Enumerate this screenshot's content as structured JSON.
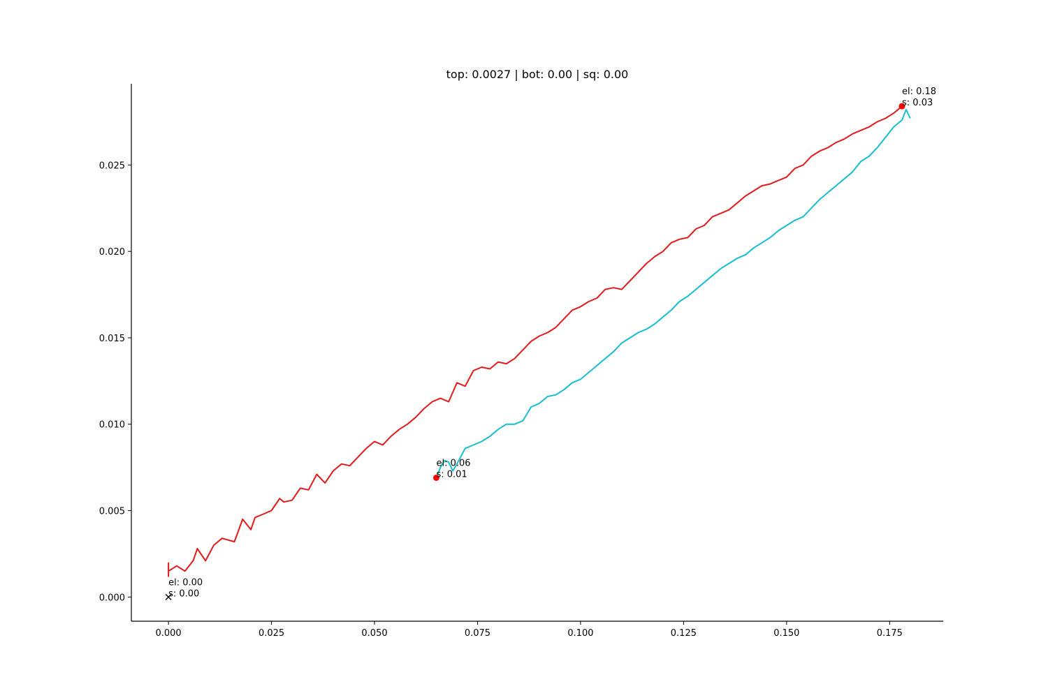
{
  "chart_data": {
    "type": "line",
    "title": "top: 0.0027 | bot: 0.00 | sq: 0.00",
    "xlabel": "",
    "ylabel": "",
    "xlim": [
      -0.009,
      0.188
    ],
    "ylim": [
      -0.0014,
      0.0297
    ],
    "x_ticks": [
      0.0,
      0.025,
      0.05,
      0.075,
      0.1,
      0.125,
      0.15,
      0.175
    ],
    "x_tick_labels": [
      "0.000",
      "0.025",
      "0.050",
      "0.075",
      "0.100",
      "0.125",
      "0.150",
      "0.175"
    ],
    "y_ticks": [
      0.0,
      0.005,
      0.01,
      0.015,
      0.02,
      0.025
    ],
    "y_tick_labels": [
      "0.000",
      "0.005",
      "0.010",
      "0.015",
      "0.020",
      "0.025"
    ],
    "grid": false,
    "spines": "left-bottom",
    "colors": {
      "red": "#e31a1c",
      "cyan": "#17becf",
      "marker": "#ff0000",
      "axis": "#000000"
    },
    "series": [
      {
        "color": "#e31a1c",
        "x": [
          0.0,
          0.0,
          0.0,
          0.002,
          0.004,
          0.006,
          0.007,
          0.009,
          0.011,
          0.013,
          0.016,
          0.018,
          0.02,
          0.021,
          0.023,
          0.025,
          0.027,
          0.028,
          0.03,
          0.032,
          0.034,
          0.036,
          0.038,
          0.04,
          0.042,
          0.044,
          0.046,
          0.048,
          0.05,
          0.052,
          0.054,
          0.056,
          0.058,
          0.06,
          0.062,
          0.064,
          0.066,
          0.068,
          0.07,
          0.072,
          0.074,
          0.076,
          0.078,
          0.08,
          0.082,
          0.084,
          0.086,
          0.088,
          0.09,
          0.092,
          0.094,
          0.096,
          0.098,
          0.1,
          0.102,
          0.104,
          0.106,
          0.108,
          0.11,
          0.112,
          0.114,
          0.116,
          0.118,
          0.12,
          0.122,
          0.124,
          0.126,
          0.128,
          0.13,
          0.132,
          0.134,
          0.136,
          0.138,
          0.14,
          0.142,
          0.144,
          0.146,
          0.148,
          0.15,
          0.152,
          0.154,
          0.156,
          0.158,
          0.16,
          0.162,
          0.164,
          0.166,
          0.168,
          0.17,
          0.172,
          0.174,
          0.176,
          0.178
        ],
        "y": [
          0.002,
          0.0012,
          0.0015,
          0.0018,
          0.0015,
          0.0021,
          0.0028,
          0.0021,
          0.003,
          0.0034,
          0.0032,
          0.0045,
          0.0039,
          0.0046,
          0.0048,
          0.005,
          0.0057,
          0.0055,
          0.0056,
          0.0063,
          0.0062,
          0.0071,
          0.0066,
          0.0073,
          0.0077,
          0.0076,
          0.0081,
          0.0086,
          0.009,
          0.0088,
          0.0093,
          0.0097,
          0.01,
          0.0104,
          0.0109,
          0.0113,
          0.0115,
          0.0113,
          0.0124,
          0.0122,
          0.0131,
          0.0133,
          0.0132,
          0.0136,
          0.0135,
          0.0138,
          0.0143,
          0.0148,
          0.0151,
          0.0153,
          0.0156,
          0.0161,
          0.0166,
          0.0168,
          0.0171,
          0.0173,
          0.0178,
          0.0179,
          0.0178,
          0.0183,
          0.0188,
          0.0193,
          0.0197,
          0.02,
          0.0205,
          0.0207,
          0.0208,
          0.0213,
          0.0215,
          0.022,
          0.0222,
          0.0224,
          0.0228,
          0.0232,
          0.0235,
          0.0238,
          0.0239,
          0.0241,
          0.0243,
          0.0248,
          0.025,
          0.0255,
          0.0258,
          0.026,
          0.0263,
          0.0265,
          0.0268,
          0.027,
          0.0272,
          0.0275,
          0.0277,
          0.028,
          0.0284
        ]
      },
      {
        "color": "#17becf",
        "x": [
          0.065,
          0.066,
          0.067,
          0.068,
          0.069,
          0.07,
          0.072,
          0.074,
          0.076,
          0.078,
          0.08,
          0.082,
          0.084,
          0.086,
          0.088,
          0.09,
          0.092,
          0.094,
          0.096,
          0.098,
          0.1,
          0.102,
          0.104,
          0.106,
          0.108,
          0.11,
          0.112,
          0.114,
          0.116,
          0.118,
          0.12,
          0.122,
          0.124,
          0.126,
          0.128,
          0.13,
          0.132,
          0.134,
          0.136,
          0.138,
          0.14,
          0.142,
          0.144,
          0.146,
          0.148,
          0.15,
          0.152,
          0.154,
          0.156,
          0.158,
          0.16,
          0.162,
          0.164,
          0.166,
          0.168,
          0.17,
          0.172,
          0.174,
          0.176,
          0.178,
          0.179,
          0.18
        ],
        "y": [
          0.0069,
          0.0075,
          0.0079,
          0.0078,
          0.0073,
          0.0077,
          0.0086,
          0.0088,
          0.009,
          0.0093,
          0.0097,
          0.01,
          0.01,
          0.0102,
          0.011,
          0.0112,
          0.0116,
          0.0117,
          0.012,
          0.0124,
          0.0126,
          0.013,
          0.0134,
          0.0138,
          0.0142,
          0.0147,
          0.015,
          0.0153,
          0.0155,
          0.0158,
          0.0162,
          0.0166,
          0.0171,
          0.0174,
          0.0178,
          0.0182,
          0.0186,
          0.019,
          0.0193,
          0.0196,
          0.0198,
          0.0202,
          0.0205,
          0.0208,
          0.0212,
          0.0215,
          0.0218,
          0.022,
          0.0225,
          0.023,
          0.0234,
          0.0238,
          0.0242,
          0.0246,
          0.0252,
          0.0255,
          0.026,
          0.0266,
          0.0272,
          0.0276,
          0.0282,
          0.0277
        ]
      }
    ],
    "markers": [
      {
        "shape": "x",
        "color": "#000000",
        "x": 0.0,
        "y": 0.0,
        "label_lines": [
          "el: 0.00",
          "s: 0.00"
        ]
      },
      {
        "shape": "dot",
        "color": "#ff0000",
        "x": 0.065,
        "y": 0.0069,
        "label_lines": [
          "el: 0.06",
          "s: 0.01"
        ]
      },
      {
        "shape": "dot",
        "color": "#ff0000",
        "x": 0.178,
        "y": 0.0284,
        "label_lines": [
          "el: 0.18",
          "s: 0.03"
        ]
      }
    ]
  }
}
